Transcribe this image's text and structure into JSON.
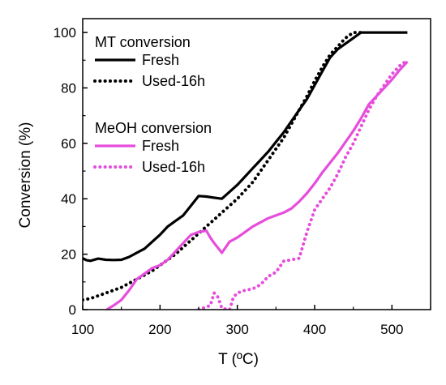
{
  "chart_data": {
    "type": "line",
    "xlabel": "T (ºC)",
    "ylabel": "Conversion (%)",
    "xlim": [
      100,
      550
    ],
    "ylim": [
      0,
      105
    ],
    "xticks": [
      100,
      200,
      300,
      400,
      500
    ],
    "yticks": [
      0,
      20,
      40,
      60,
      80,
      100
    ],
    "grid": false,
    "legend_position": "top-left",
    "legend_groups": [
      {
        "title": "MT conversion",
        "series": [
          0,
          1
        ]
      },
      {
        "title": "MeOH conversion",
        "series": [
          2,
          3
        ]
      }
    ],
    "series": [
      {
        "name": "Fresh",
        "group": "MT conversion",
        "color": "#000000",
        "style": "solid",
        "x": [
          100,
          105,
          110,
          120,
          130,
          140,
          150,
          160,
          170,
          180,
          190,
          200,
          210,
          220,
          230,
          240,
          250,
          260,
          270,
          280,
          290,
          300,
          310,
          320,
          330,
          340,
          350,
          360,
          370,
          380,
          390,
          400,
          410,
          420,
          430,
          440,
          450,
          460,
          470,
          480,
          490,
          500,
          510,
          520
        ],
        "y": [
          18.5,
          17.8,
          17.6,
          18.4,
          18.0,
          17.9,
          18.0,
          19.0,
          20.5,
          22.0,
          24.5,
          27.0,
          30.0,
          32.0,
          34.0,
          37.5,
          41.0,
          40.8,
          40.4,
          40.0,
          42.5,
          45.0,
          48.0,
          51.0,
          54.0,
          57.0,
          60.5,
          64.0,
          68.0,
          72.0,
          76.0,
          81.0,
          86.0,
          91.0,
          94.0,
          96.0,
          98.0,
          100.0,
          100.0,
          100.0,
          100.0,
          100.0,
          100.0,
          100.0
        ]
      },
      {
        "name": "Used-16h",
        "group": "MT conversion",
        "color": "#000000",
        "style": "dotted",
        "x": [
          100,
          110,
          120,
          130,
          140,
          150,
          160,
          170,
          180,
          190,
          200,
          210,
          220,
          230,
          240,
          250,
          260,
          270,
          280,
          290,
          300,
          310,
          320,
          330,
          340,
          350,
          360,
          370,
          380,
          390,
          400,
          410,
          420,
          430,
          440,
          450,
          460
        ],
        "y": [
          3.5,
          4.0,
          5.0,
          6.0,
          7.0,
          8.0,
          9.5,
          11.0,
          12.5,
          14.0,
          16.0,
          18.0,
          20.0,
          22.5,
          25.0,
          27.5,
          30.0,
          32.5,
          35.0,
          37.5,
          40.0,
          43.0,
          46.0,
          50.0,
          54.0,
          58.0,
          62.0,
          67.0,
          72.0,
          77.0,
          82.5,
          87.5,
          92.0,
          95.0,
          98.0,
          100.0,
          100.0
        ]
      },
      {
        "name": "Fresh",
        "group": "MeOH conversion",
        "color": "#e64ddc",
        "style": "solid",
        "x": [
          131,
          140,
          150,
          160,
          170,
          180,
          190,
          200,
          210,
          220,
          230,
          240,
          250,
          260,
          265,
          270,
          280,
          290,
          300,
          310,
          320,
          330,
          340,
          350,
          360,
          370,
          380,
          390,
          400,
          410,
          420,
          430,
          440,
          450,
          460,
          470,
          480,
          490,
          500,
          510,
          520
        ],
        "y": [
          0,
          1.5,
          3.5,
          7.0,
          11.0,
          13.0,
          15.0,
          16.0,
          18.0,
          21.0,
          24.0,
          27.0,
          28.0,
          28.5,
          26.0,
          24.0,
          20.5,
          24.5,
          26.0,
          28.0,
          30.0,
          31.5,
          33.0,
          34.0,
          35.0,
          36.5,
          39.0,
          42.0,
          45.5,
          49.5,
          53.0,
          56.5,
          60.5,
          64.5,
          69.0,
          74.0,
          77.0,
          80.0,
          83.0,
          86.5,
          89.5
        ]
      },
      {
        "name": "Used-16h",
        "group": "MeOH conversion",
        "color": "#e64ddc",
        "style": "dotted",
        "x": [
          250,
          255,
          260,
          265,
          270,
          275,
          280,
          285,
          290,
          295,
          300,
          310,
          320,
          330,
          340,
          350,
          360,
          370,
          380,
          390,
          400,
          410,
          420,
          430,
          440,
          450,
          460,
          470,
          480,
          490,
          500,
          510,
          520
        ],
        "y": [
          0,
          0.5,
          1.0,
          1.5,
          6.0,
          4.5,
          0.5,
          0.2,
          0,
          4.5,
          6.0,
          7.0,
          7.5,
          9.0,
          12.0,
          13.5,
          17.5,
          18.0,
          18.5,
          28.0,
          36.0,
          40.0,
          44.0,
          49.0,
          55.0,
          60.0,
          66.0,
          72.0,
          77.0,
          81.0,
          85.0,
          88.0,
          90.0
        ]
      }
    ]
  }
}
